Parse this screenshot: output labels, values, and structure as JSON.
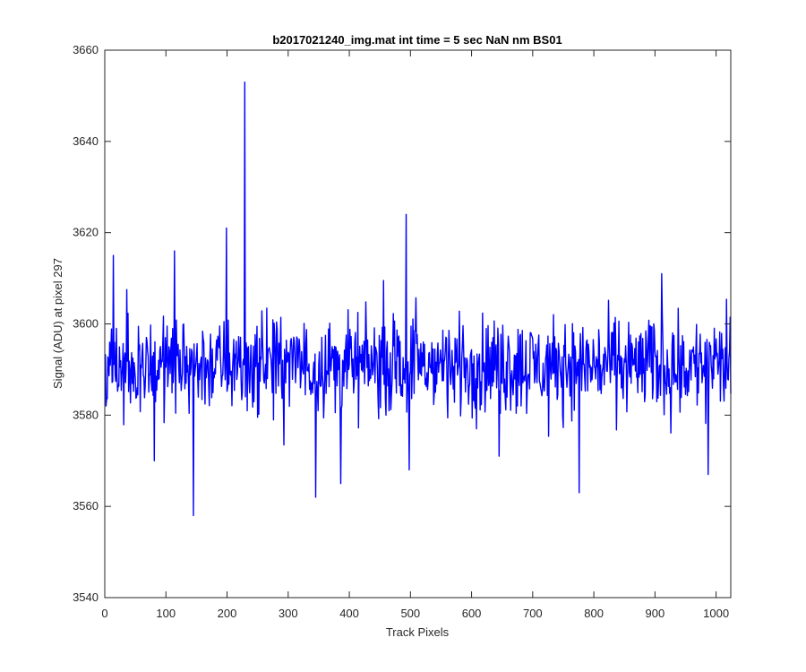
{
  "chart_data": {
    "type": "line",
    "title": "b2017021240_img.mat int time = 5 sec  NaN nm BS01",
    "xlabel": "Track Pixels",
    "ylabel": "Signal (ADU) at pixel 297",
    "xlim": [
      0,
      1024
    ],
    "ylim": [
      3540,
      3660
    ],
    "xticks": [
      0,
      100,
      200,
      300,
      400,
      500,
      600,
      700,
      800,
      900,
      1000
    ],
    "yticks": [
      3540,
      3560,
      3580,
      3600,
      3620,
      3640,
      3660
    ],
    "xtick_labels": [
      "0",
      "100",
      "200",
      "300",
      "400",
      "500",
      "600",
      "700",
      "800",
      "900",
      "1000"
    ],
    "ytick_labels": [
      "3540",
      "3560",
      "3580",
      "3600",
      "3620",
      "3640",
      "3660"
    ],
    "grid": false,
    "series": [
      {
        "color": "#0000ff",
        "x_start": 1,
        "x_step": 1,
        "note_count": 1024,
        "baseline": 3590,
        "noise_low": 3576,
        "noise_high": 3606,
        "peaks": [
          {
            "x": 14,
            "y": 3615
          },
          {
            "x": 81,
            "y": 3570
          },
          {
            "x": 114,
            "y": 3616
          },
          {
            "x": 145,
            "y": 3558
          },
          {
            "x": 199,
            "y": 3621
          },
          {
            "x": 229,
            "y": 3653
          },
          {
            "x": 345,
            "y": 3562
          },
          {
            "x": 386,
            "y": 3565
          },
          {
            "x": 493,
            "y": 3624
          },
          {
            "x": 498,
            "y": 3568
          },
          {
            "x": 645,
            "y": 3571
          },
          {
            "x": 776,
            "y": 3563
          },
          {
            "x": 911,
            "y": 3611
          },
          {
            "x": 987,
            "y": 3567
          }
        ]
      }
    ]
  }
}
